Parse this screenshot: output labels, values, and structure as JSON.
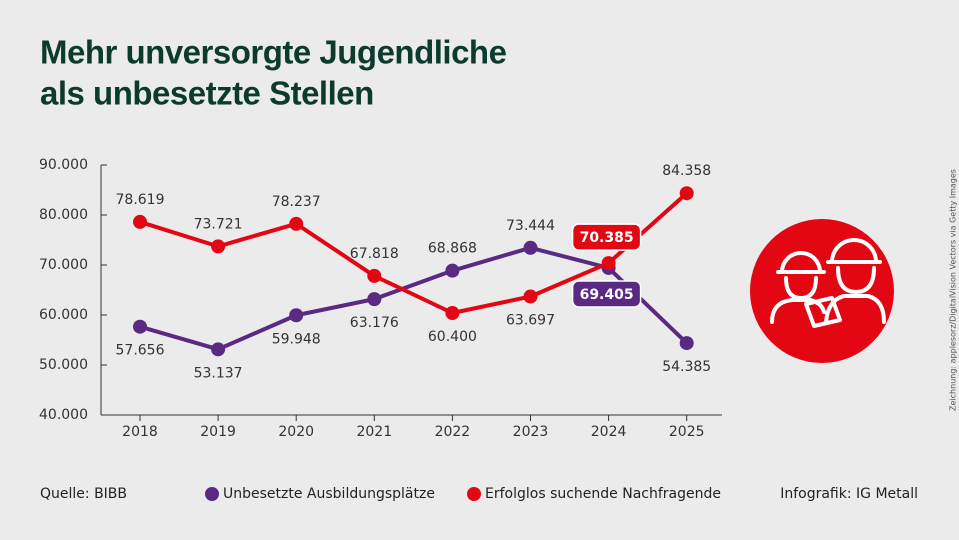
{
  "chart_data": {
    "type": "line",
    "title": [
      "Mehr unversorgte Jugendliche",
      "als unbesetzte Stellen"
    ],
    "categories": [
      "2018",
      "2019",
      "2020",
      "2021",
      "2022",
      "2023",
      "2024",
      "2025"
    ],
    "series": [
      {
        "name": "Unbesetzte Ausbildungsplätze",
        "color": "#5a2a82",
        "values": [
          57656,
          53137,
          59948,
          63176,
          68868,
          73444,
          69405,
          54385
        ],
        "value_labels": [
          "57.656",
          "53.137",
          "59.948",
          "63.176",
          "68.868",
          "73.444",
          "69.405",
          "54.385"
        ]
      },
      {
        "name": "Erfolglos suchende Nachfragende",
        "color": "#e30613",
        "values": [
          78619,
          73721,
          78237,
          67818,
          60400,
          63697,
          70385,
          84358
        ],
        "value_labels": [
          "78.619",
          "73.721",
          "78.237",
          "67.818",
          "60.400",
          "63.697",
          "70.385",
          "84.358"
        ]
      }
    ],
    "ylim": [
      40000,
      90000
    ],
    "yticks": [
      {
        "value": 40000,
        "label": "40.000"
      },
      {
        "value": 50000,
        "label": "50.000"
      },
      {
        "value": 60000,
        "label": "60.000"
      },
      {
        "value": 70000,
        "label": "70.000"
      },
      {
        "value": 80000,
        "label": "80.000"
      },
      {
        "value": 90000,
        "label": "90.000"
      }
    ],
    "source": "Quelle: BIBB",
    "credit": "Infografik: IG Metall",
    "image_credit": "Zeichnung: applesorz/DigitalVision Vectors via Getty Images"
  }
}
